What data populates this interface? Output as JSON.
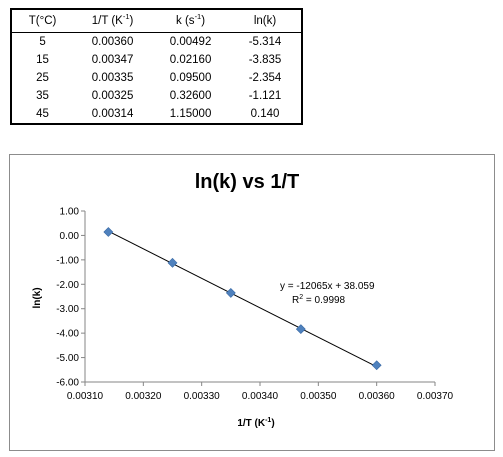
{
  "table": {
    "headers": {
      "temp": "T(°C)",
      "inv_t_base": "1/T (K",
      "inv_t_sup": "-1",
      "inv_t_close": ")",
      "k_base": "k (s",
      "k_sup": "-1",
      "k_close": ")",
      "lnk": "ln(k)"
    },
    "rows": [
      {
        "temp": "5",
        "inv_t": "0.00360",
        "k": "0.00492",
        "lnk": "-5.314"
      },
      {
        "temp": "15",
        "inv_t": "0.00347",
        "k": "0.02160",
        "lnk": "-3.835"
      },
      {
        "temp": "25",
        "inv_t": "0.00335",
        "k": "0.09500",
        "lnk": "-2.354"
      },
      {
        "temp": "35",
        "inv_t": "0.00325",
        "k": "0.32600",
        "lnk": "-1.121"
      },
      {
        "temp": "45",
        "inv_t": "0.00314",
        "k": "1.15000",
        "lnk": "0.140"
      }
    ]
  },
  "chart_data": {
    "type": "scatter",
    "title": "ln(k) vs 1/T",
    "xlabel_base": "1/T (K",
    "xlabel_sup": "-1",
    "xlabel_close": ")",
    "ylabel": "ln(k)",
    "xlim": [
      0.0031,
      0.0037
    ],
    "ylim": [
      -6.0,
      1.0
    ],
    "x_ticks": [
      0.0031,
      0.0032,
      0.0033,
      0.0034,
      0.0035,
      0.0036,
      0.0037
    ],
    "x_tick_labels": [
      "0.00310",
      "0.00320",
      "0.00330",
      "0.00340",
      "0.00350",
      "0.00360",
      "0.00370"
    ],
    "y_ticks": [
      1,
      0,
      -1,
      -2,
      -3,
      -4,
      -5,
      -6
    ],
    "y_tick_labels": [
      "1.00",
      "0.00",
      "-1.00",
      "-2.00",
      "-3.00",
      "-4.00",
      "-5.00",
      "-6.00"
    ],
    "grid": false,
    "legend": "none",
    "series": [
      {
        "x": [
          0.0036,
          0.00347,
          0.00335,
          0.00325,
          0.00314
        ],
        "y": [
          -5.314,
          -3.835,
          -2.354,
          -1.121,
          0.14
        ],
        "marker": "diamond",
        "color": "#4f81bd"
      }
    ],
    "trendline": {
      "slope": -12065,
      "intercept": 38.059,
      "color": "#000000",
      "equation": "y = -12065x + 38.059",
      "r2_base": "R",
      "r2_sup": "2",
      "r2_rest": " = 0.9998"
    }
  }
}
